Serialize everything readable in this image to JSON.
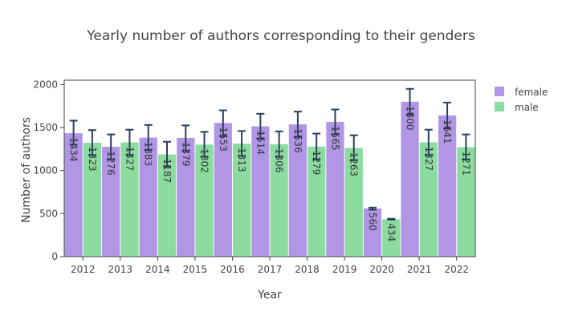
{
  "chart_data": {
    "type": "bar",
    "title": "Yearly number of authors corresponding to their genders",
    "xlabel": "Year",
    "ylabel": "Number of authors",
    "categories": [
      "2012",
      "2013",
      "2014",
      "2015",
      "2016",
      "2017",
      "2018",
      "2019",
      "2020",
      "2021",
      "2022"
    ],
    "series": [
      {
        "name": "female",
        "color": "#b196e6",
        "values": [
          1434,
          1276,
          1383,
          1379,
          1553,
          1514,
          1536,
          1565,
          560,
          1800,
          1641
        ],
        "error_low": [
          1300,
          1130,
          1240,
          1230,
          1400,
          1370,
          1390,
          1420,
          545,
          1650,
          1490
        ],
        "error_high": [
          1580,
          1420,
          1530,
          1525,
          1700,
          1660,
          1685,
          1710,
          570,
          1950,
          1790
        ]
      },
      {
        "name": "male",
        "color": "#8cdca0",
        "values": [
          1323,
          1327,
          1187,
          1302,
          1313,
          1306,
          1279,
          1263,
          434,
          1327,
          1271
        ],
        "error_low": [
          1180,
          1180,
          1050,
          1160,
          1170,
          1160,
          1130,
          1120,
          430,
          1180,
          1130
        ],
        "error_high": [
          1470,
          1475,
          1335,
          1450,
          1460,
          1455,
          1430,
          1410,
          440,
          1475,
          1420
        ]
      }
    ],
    "data_labels": {
      "female": [
        "1434",
        "1276",
        "1383",
        "1379",
        "1553",
        "1514",
        "1536",
        "1565",
        "560",
        "1800",
        "1641"
      ],
      "male": [
        "1323",
        "1327",
        "1187",
        "1302",
        "1313",
        "1306",
        "1279",
        "1263",
        "434",
        "1327",
        "1271"
      ]
    },
    "ylim": [
      0,
      2050
    ],
    "yticks": [
      0,
      500,
      1000,
      1500,
      2000
    ],
    "ytick_labels": [
      "0",
      "500",
      "1000",
      "1500",
      "2000"
    ],
    "grid": false,
    "legend_position": "top-right"
  }
}
